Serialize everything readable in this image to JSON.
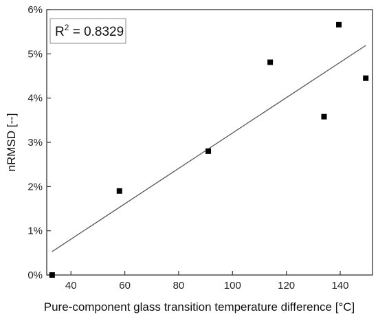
{
  "chart_data": {
    "type": "scatter",
    "xlabel": "Pure-component glass transition temperature difference  [°C]",
    "ylabel": "nRMSD [--]",
    "xlim": [
      31,
      152
    ],
    "ylim": [
      0,
      6
    ],
    "x_ticks": [
      40,
      60,
      80,
      100,
      120,
      140
    ],
    "y_ticks": [
      0,
      1,
      2,
      3,
      4,
      5,
      6
    ],
    "y_tick_labels": [
      "0%",
      "1%",
      "2%",
      "3%",
      "4%",
      "5%",
      "6%"
    ],
    "points": [
      {
        "x": 33,
        "y": 0.0
      },
      {
        "x": 58,
        "y": 1.9
      },
      {
        "x": 91,
        "y": 2.8
      },
      {
        "x": 114,
        "y": 4.81
      },
      {
        "x": 134,
        "y": 3.58
      },
      {
        "x": 139.5,
        "y": 5.66
      },
      {
        "x": 149.5,
        "y": 4.45
      }
    ],
    "trendline": {
      "x": [
        33,
        149.5
      ],
      "y": [
        0.53,
        5.19
      ]
    },
    "annotation": {
      "prefix": "R",
      "superscript": "2",
      "text": " = 0.8329",
      "placement": "top-left"
    },
    "grid": false,
    "colors": {
      "marker": "#000000",
      "line": "#555555",
      "axis": "#333333"
    }
  }
}
